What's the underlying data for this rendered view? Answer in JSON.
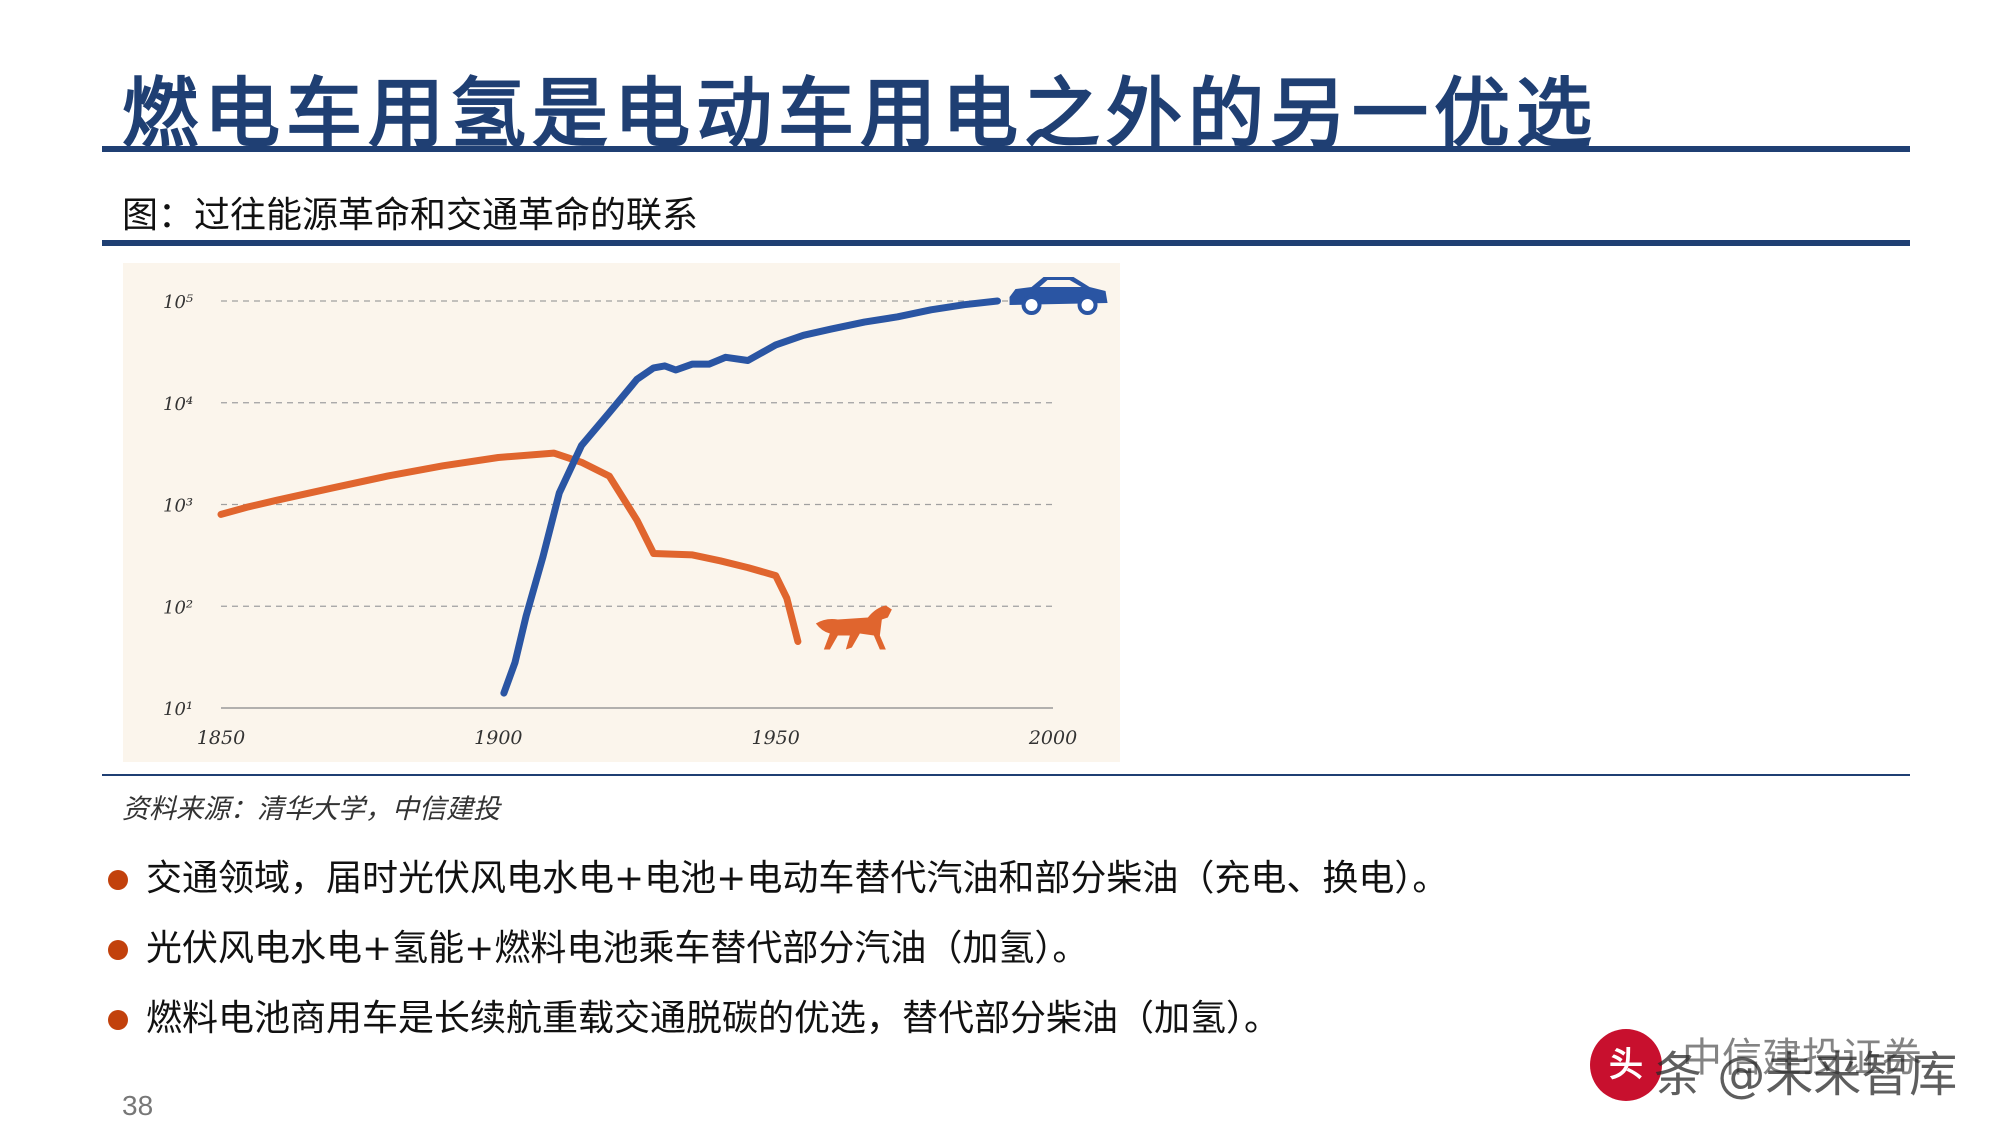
{
  "header": {
    "title": "燃电车用氢是电动车用电之外的另一优选",
    "figure_caption": "图：过往能源革命和交通革命的联系"
  },
  "chart_data": {
    "type": "line",
    "title": "",
    "xlabel": "",
    "ylabel": "",
    "x_ticks": [
      "1850",
      "1900",
      "1950",
      "2000"
    ],
    "y_ticks": [
      "10¹",
      "10²",
      "10³",
      "10⁴",
      "10⁵"
    ],
    "xlim": [
      1850,
      2000
    ],
    "ylim_log10": [
      1,
      5
    ],
    "y_scale": "log",
    "grid": "horizontal-dashed",
    "series": [
      {
        "name": "",
        "color": "#e0652e",
        "icon": "horse-icon",
        "points": [
          [
            1850,
            800
          ],
          [
            1855,
            950
          ],
          [
            1860,
            1100
          ],
          [
            1870,
            1450
          ],
          [
            1880,
            1900
          ],
          [
            1890,
            2400
          ],
          [
            1900,
            2900
          ],
          [
            1910,
            3200
          ],
          [
            1915,
            2600
          ],
          [
            1920,
            1900
          ],
          [
            1925,
            700
          ],
          [
            1928,
            330
          ],
          [
            1935,
            320
          ],
          [
            1940,
            280
          ],
          [
            1945,
            240
          ],
          [
            1950,
            200
          ],
          [
            1952,
            120
          ],
          [
            1954,
            45
          ]
        ]
      },
      {
        "name": "",
        "color": "#2a55a3",
        "icon": "car-icon",
        "points": [
          [
            1901,
            14
          ],
          [
            1903,
            28
          ],
          [
            1905,
            80
          ],
          [
            1908,
            300
          ],
          [
            1911,
            1300
          ],
          [
            1915,
            3800
          ],
          [
            1920,
            8000
          ],
          [
            1925,
            17000
          ],
          [
            1928,
            22000
          ],
          [
            1930,
            23000
          ],
          [
            1932,
            21000
          ],
          [
            1935,
            24000
          ],
          [
            1938,
            24000
          ],
          [
            1941,
            28000
          ],
          [
            1945,
            26000
          ],
          [
            1950,
            37000
          ],
          [
            1955,
            46000
          ],
          [
            1960,
            53000
          ],
          [
            1966,
            62000
          ],
          [
            1972,
            70000
          ],
          [
            1978,
            82000
          ],
          [
            1984,
            92000
          ],
          [
            1990,
            100000
          ]
        ]
      }
    ]
  },
  "source": "资料来源：清华大学，中信建投",
  "bullets": [
    "交通领域，届时光伏风电水电+电池+电动车替代汽油和部分柴油（充电、换电）。",
    "光伏风电水电+氢能+燃料电池乘车替代部分汽油（加氢）。",
    "燃料电池商用车是长续航重载交通脱碳的优选，替代部分柴油（加氢）。"
  ],
  "page_number": "38",
  "watermark": {
    "badge": "头",
    "text": "条 @未来智库",
    "text_overlay": "中信建投证券"
  },
  "colors": {
    "title": "#1f3f73",
    "bullet_dot": "#c2410c",
    "chart_bg": "#fbf5ec"
  }
}
